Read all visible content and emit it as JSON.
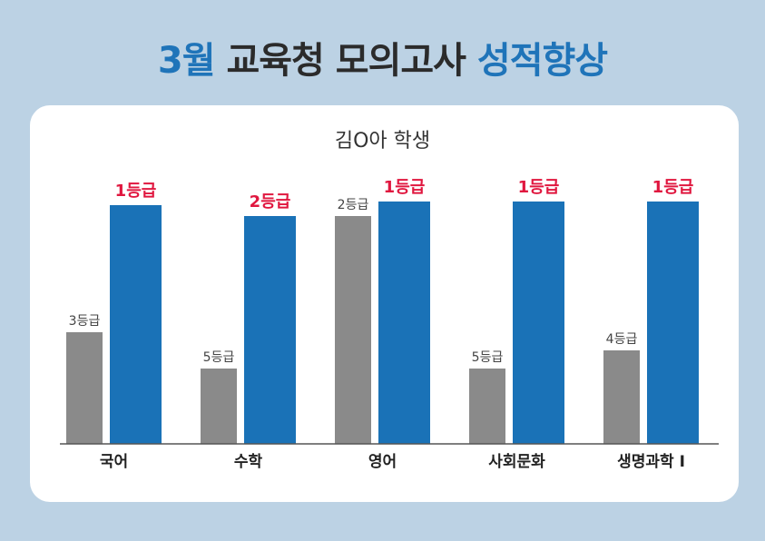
{
  "title": {
    "part1": "3월",
    "part2": " 교육청 모의고사 ",
    "part3": "성적향상"
  },
  "colors": {
    "background": "#bcd2e4",
    "accent": "#1f74b9",
    "before_bar": "#8a8a8a",
    "after_bar": "#1a72b7",
    "after_label": "#e0173f"
  },
  "chart_data": {
    "type": "bar",
    "title": "김O아 학생",
    "categories": [
      "국어",
      "수학",
      "영어",
      "사회문화",
      "생명과학 I"
    ],
    "series": [
      {
        "values": [
          3,
          5,
          2,
          5,
          4
        ],
        "labels": [
          "3등급",
          "5등급",
          "2등급",
          "5등급",
          "4등급"
        ]
      },
      {
        "values": [
          1,
          2,
          1,
          1,
          1
        ],
        "labels": [
          "1등급",
          "2등급",
          "1등급",
          "1등급",
          "1등급"
        ]
      }
    ],
    "value_axis": "grade (lower is better)",
    "ylim": [
      9,
      0
    ],
    "grid": false,
    "legend": "none"
  }
}
